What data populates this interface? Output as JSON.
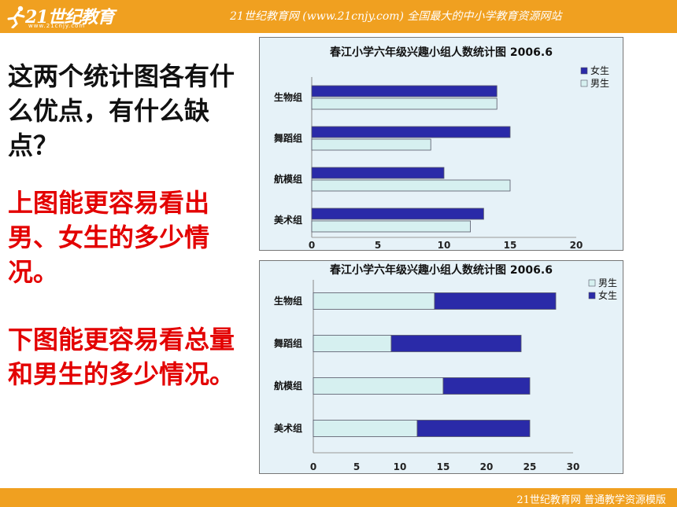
{
  "header": {
    "logo_text": "21世纪教育",
    "logo_sub": "www.21cnjy.com",
    "slogan": "21世纪教育网 (www.21cnjy.com) 全国最大的中小学教育资源网站"
  },
  "footer": {
    "text": "21世纪教育网   普通教学资源模版"
  },
  "left": {
    "question": "这两个统计图各有什么优点，有什么缺点？",
    "answer1": "上图能更容易看出男、女生的多少情况。",
    "answer2": "下图能更容易看总量和男生的多少情况。"
  },
  "colors": {
    "female": "#2a2aa8",
    "male": "#d6f0f0",
    "bar_bg": "#e6f2f8",
    "accent": "#f0a020",
    "answer": "#e30000"
  },
  "chart_data": [
    {
      "type": "bar",
      "orientation": "horizontal",
      "grouping": "clustered",
      "title": "春江小学六年级兴趣小组人数统计图 2006.6",
      "categories": [
        "生物组",
        "舞蹈组",
        "航模组",
        "美术组"
      ],
      "series": [
        {
          "name": "女生",
          "values": [
            14,
            15,
            10,
            13
          ]
        },
        {
          "name": "男生",
          "values": [
            14,
            9,
            15,
            12
          ]
        }
      ],
      "xlim": [
        0,
        20
      ],
      "xticks": [
        "0",
        "5",
        "10",
        "15",
        "20"
      ],
      "legend": "top-right"
    },
    {
      "type": "bar",
      "orientation": "horizontal",
      "grouping": "stacked",
      "title": "春江小学六年级兴趣小组人数统计图 2006.6",
      "categories": [
        "生物组",
        "舞蹈组",
        "航模组",
        "美术组"
      ],
      "series": [
        {
          "name": "男生",
          "values": [
            14,
            9,
            15,
            12
          ]
        },
        {
          "name": "女生",
          "values": [
            14,
            15,
            10,
            13
          ]
        }
      ],
      "xlim": [
        0,
        30
      ],
      "xticks": [
        "0",
        "5",
        "10",
        "15",
        "20",
        "25",
        "30"
      ],
      "legend": "top-right"
    }
  ]
}
